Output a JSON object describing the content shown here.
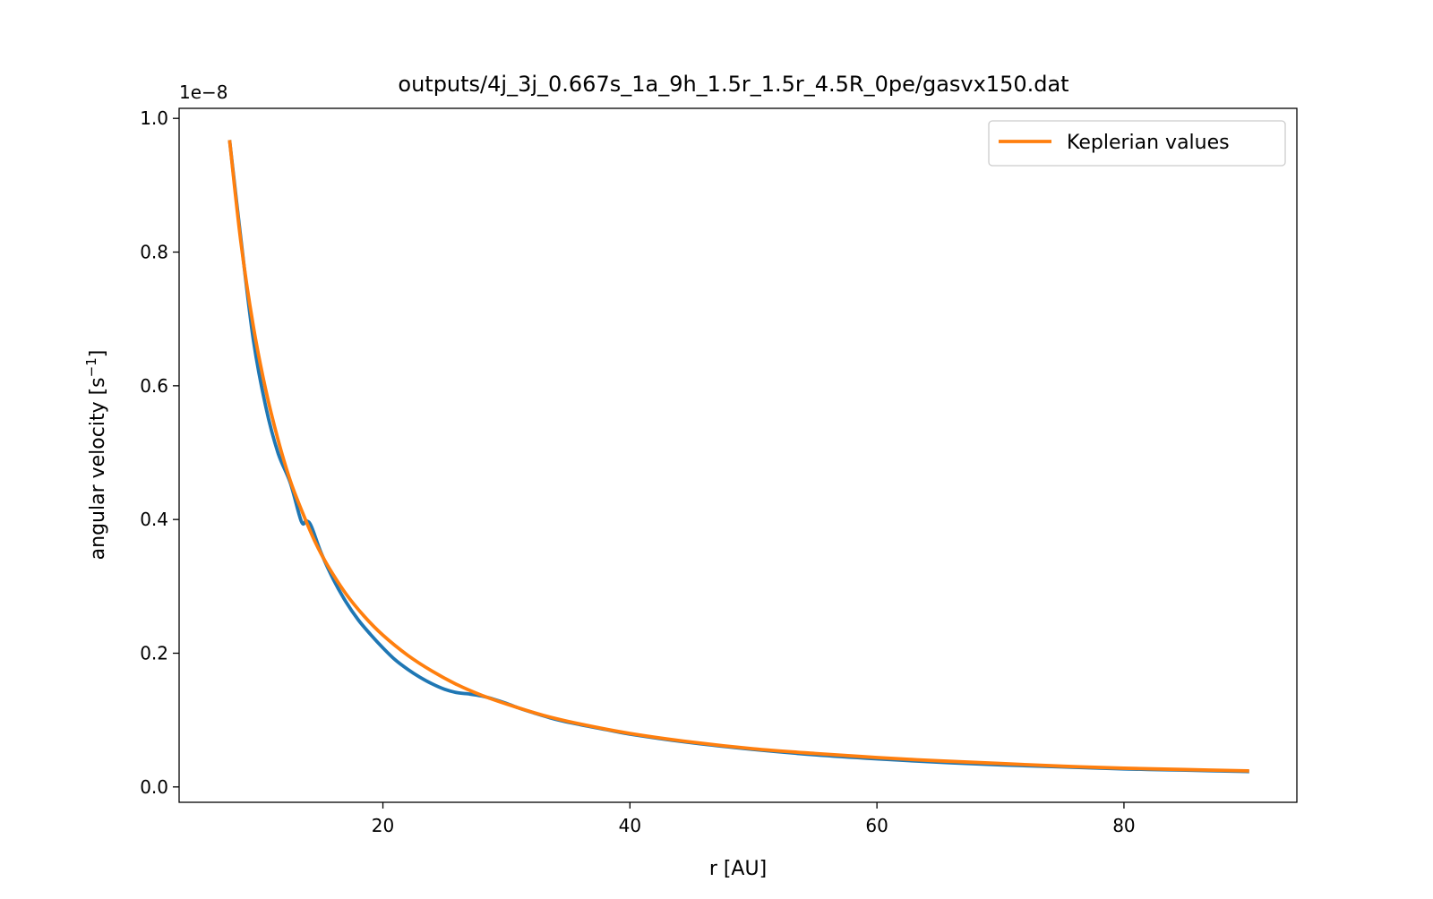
{
  "chart_data": {
    "type": "line",
    "title": "outputs/4j_3j_0.667s_1a_9h_1.5r_1.5r_4.5R_0pe/gasvx150.dat",
    "xlabel": "r [AU]",
    "ylabel_main": "angular velocity [s",
    "ylabel_sup": "−1",
    "ylabel_close": "]",
    "y_offset_label": "1e−8",
    "xlim": [
      3.5,
      94.0
    ],
    "ylim": [
      -0.023,
      1.015
    ],
    "y_scale": 1e-08,
    "x_ticks": [
      {
        "value": 20,
        "label": "20"
      },
      {
        "value": 40,
        "label": "40"
      },
      {
        "value": 60,
        "label": "60"
      },
      {
        "value": 80,
        "label": "80"
      }
    ],
    "y_ticks": [
      {
        "value": 0.0,
        "label": "0.0"
      },
      {
        "value": 0.2,
        "label": "0.2"
      },
      {
        "value": 0.4,
        "label": "0.4"
      },
      {
        "value": 0.6,
        "label": "0.6"
      },
      {
        "value": 0.8,
        "label": "0.8"
      },
      {
        "value": 1.0,
        "label": "1.0"
      }
    ],
    "legend": {
      "placement": "top-right",
      "entries": [
        {
          "label": "Keplerian values",
          "color": "#ff7f0e"
        }
      ]
    },
    "grid": false,
    "series": [
      {
        "color": "#1f77b4",
        "x": [
          7.6,
          8.5,
          9.5,
          10.5,
          11.5,
          12.5,
          13.4,
          13.8,
          14.2,
          15,
          16,
          17,
          18,
          19,
          20,
          21,
          22,
          23,
          24,
          25,
          26,
          27,
          28,
          29,
          30,
          31,
          32,
          34,
          36,
          38,
          40,
          45,
          50,
          55,
          60,
          65,
          70,
          75,
          80,
          85,
          90
        ],
        "values": [
          0.965,
          0.82,
          0.67,
          0.57,
          0.5,
          0.455,
          0.397,
          0.398,
          0.39,
          0.35,
          0.31,
          0.277,
          0.25,
          0.228,
          0.208,
          0.19,
          0.176,
          0.164,
          0.154,
          0.146,
          0.141,
          0.139,
          0.136,
          0.131,
          0.125,
          0.118,
          0.112,
          0.101,
          0.093,
          0.086,
          0.079,
          0.066,
          0.056,
          0.048,
          0.042,
          0.037,
          0.033,
          0.03,
          0.027,
          0.025,
          0.023
        ]
      },
      {
        "name": "Keplerian values",
        "color": "#ff7f0e",
        "x": [
          7.6,
          8.5,
          9.5,
          10.5,
          11.5,
          12.5,
          13.5,
          14.5,
          15.5,
          17,
          18.5,
          20,
          22,
          24,
          26,
          28,
          30,
          33,
          36,
          40,
          45,
          50,
          55,
          60,
          65,
          70,
          75,
          80,
          85,
          90
        ],
        "values": [
          0.965,
          0.815,
          0.69,
          0.595,
          0.52,
          0.458,
          0.41,
          0.367,
          0.332,
          0.289,
          0.255,
          0.227,
          0.197,
          0.173,
          0.153,
          0.137,
          0.124,
          0.107,
          0.094,
          0.08,
          0.067,
          0.057,
          0.05,
          0.044,
          0.039,
          0.035,
          0.031,
          0.028,
          0.026,
          0.024
        ]
      }
    ]
  }
}
